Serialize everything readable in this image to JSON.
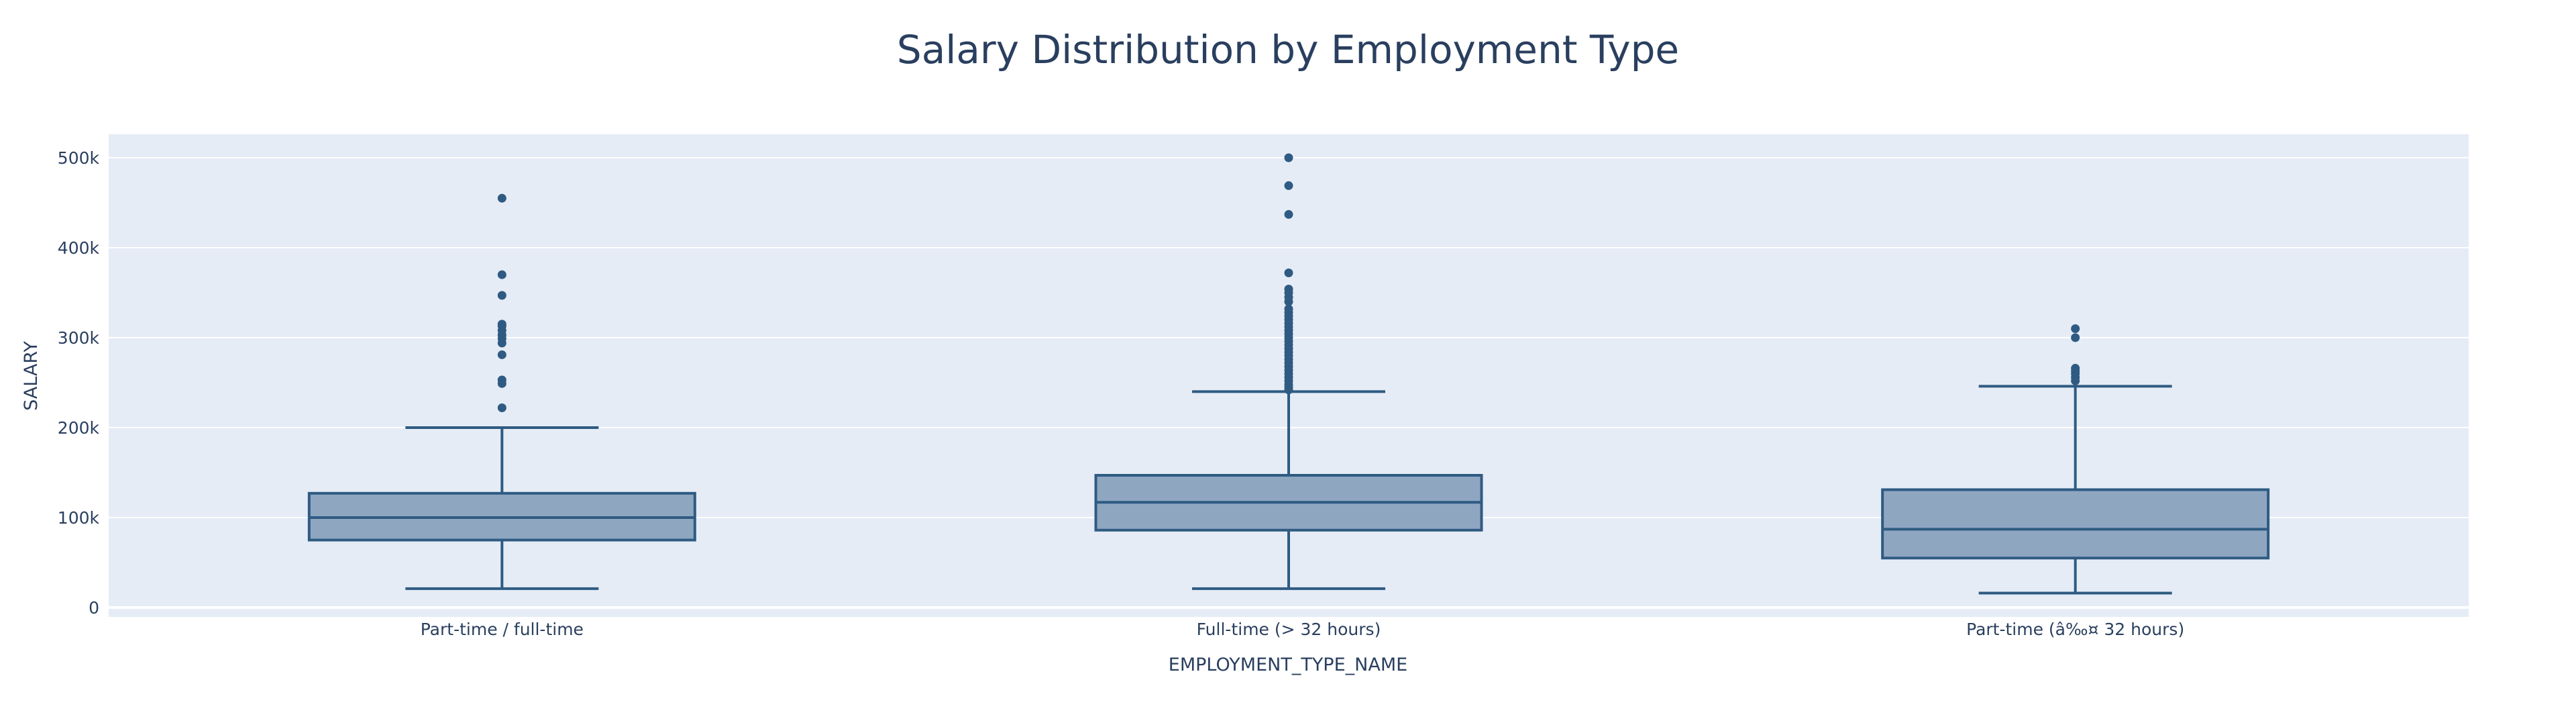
{
  "chart_data": {
    "type": "box",
    "title": "Salary Distribution by Employment Type",
    "xlabel": "EMPLOYMENT_TYPE_NAME",
    "ylabel": "SALARY",
    "ylim": [
      -8000,
      528000
    ],
    "yticks": [
      0,
      100000,
      200000,
      300000,
      400000,
      500000
    ],
    "ytick_labels": [
      "0",
      "100k",
      "200k",
      "300k",
      "400k",
      "500k"
    ],
    "grid": true,
    "colors": {
      "plot_bg": "#e5ecf6",
      "box_fill": "#8fa6c1",
      "box_line": "#2f5b82",
      "text": "#2a3f5f",
      "grid": "#ffffff"
    },
    "categories": [
      "Part-time / full-time",
      "Full-time (> 32 hours)",
      "Part-time (â‰¤ 32 hours)"
    ],
    "series": [
      {
        "category": "Part-time / full-time",
        "min": 21000,
        "q1": 75000,
        "median": 100000,
        "q3": 127000,
        "max": 200000,
        "outliers": [
          222000,
          249000,
          253000,
          281000,
          294000,
          299000,
          303000,
          308000,
          313000,
          315000,
          347000,
          370000,
          455000
        ]
      },
      {
        "category": "Full-time (> 32 hours)",
        "min": 21000,
        "q1": 86000,
        "median": 117000,
        "q3": 147000,
        "max": 240000,
        "outliers": [
          242000,
          245000,
          248000,
          252000,
          256000,
          260000,
          264000,
          268000,
          272000,
          276000,
          280000,
          284000,
          288000,
          292000,
          296000,
          300000,
          304000,
          308000,
          312000,
          316000,
          320000,
          324000,
          328000,
          332000,
          340000,
          345000,
          350000,
          354000,
          372000,
          437000,
          469000,
          500000
        ]
      },
      {
        "category": "Part-time (â‰¤ 32 hours)",
        "min": 16000,
        "q1": 55000,
        "median": 87000,
        "q3": 131000,
        "max": 246000,
        "outliers": [
          252000,
          256000,
          260000,
          263000,
          266000,
          300000,
          310000
        ]
      }
    ]
  }
}
